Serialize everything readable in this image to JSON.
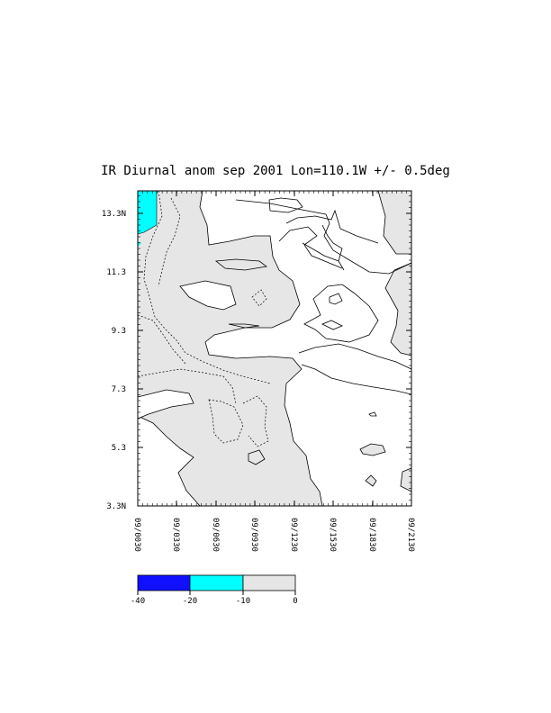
{
  "chart_data": {
    "type": "heatmap",
    "title": "IR Diurnal anom sep 2001 Lon=110.1W +/- 0.5deg",
    "xlabel": "",
    "ylabel": "",
    "x_ticks": [
      "09/0030",
      "09/0330",
      "09/0630",
      "09/0930",
      "09/1230",
      "09/1530",
      "09/1830",
      "09/2130"
    ],
    "y_ticks": [
      "3.3N",
      "5.3",
      "7.3",
      "9.3",
      "11.3",
      "13.3N"
    ],
    "ylim": [
      3.3,
      14.8
    ],
    "grid": false,
    "colorbar": {
      "levels": [
        "-40",
        "-20",
        "-10",
        "0"
      ],
      "colors": [
        "#1010ff",
        "#00ffff",
        "#e6e6e6"
      ]
    },
    "shaded_regions": [
      {
        "level_range": [
          -10,
          0
        ],
        "color": "#e6e6e6",
        "description": "western half of domain, all latitudes"
      },
      {
        "level_range": [
          -20,
          -10
        ],
        "color": "#00ffff",
        "description": "northwest corner near 09/0030, 12.5N-14.8N"
      }
    ]
  }
}
